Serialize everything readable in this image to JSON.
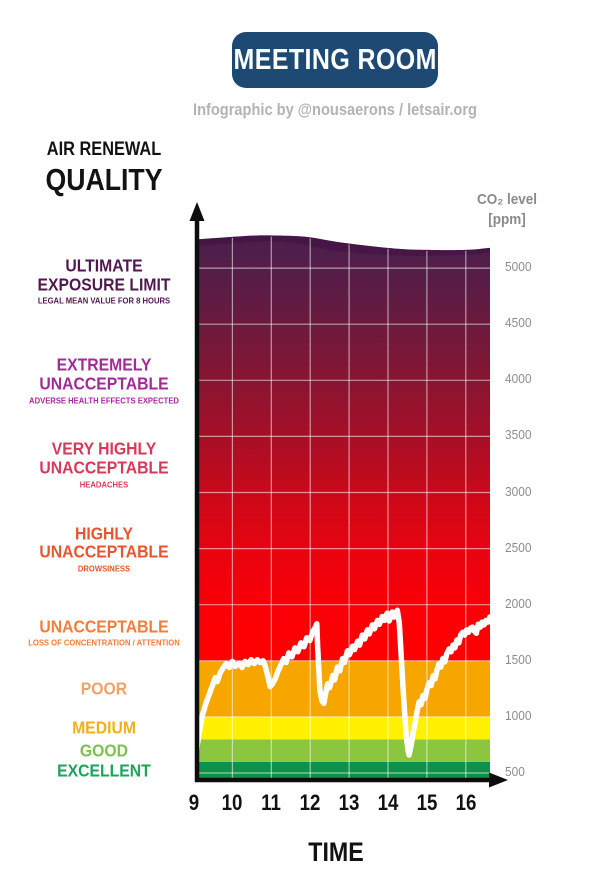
{
  "header": {
    "title": "MEETING ROOM",
    "subtitle": "Infographic by @nousaerons / letsair.org"
  },
  "left_heading": {
    "line1": "AIR RENEWAL",
    "line2": "QUALITY"
  },
  "axes": {
    "x_label": "TIME",
    "y_label_line1": "CO₂ level",
    "y_label_line2": "[ppm]"
  },
  "colors": {
    "badge_bg": "#1E4973",
    "badge_text": "#FFFFFF",
    "subtitle_text": "#B3B3B3",
    "tick_text": "#8C8C8C",
    "axis_black": "#0D0D0D",
    "series_line": "#FFFFFF",
    "gridline": "rgba(255,255,255,0.55)"
  },
  "chart_data": {
    "type": "area",
    "title": "MEETING ROOM",
    "xlabel": "TIME",
    "ylabel": "CO₂ level [ppm]",
    "x": {
      "unit": "hour",
      "ticks": [
        9,
        10,
        11,
        12,
        13,
        14,
        15,
        16
      ],
      "range": [
        9,
        16.65
      ]
    },
    "y": {
      "unit": "ppm",
      "ticks": [
        500,
        1000,
        1500,
        2000,
        2500,
        3000,
        3500,
        4000,
        4500,
        5000
      ],
      "range": [
        437,
        5300
      ]
    },
    "categories": [
      {
        "label": "ULTIMATE\nEXPOSURE LIMIT",
        "sub": "LEGAL MEAN VALUE FOR 8 HOURS",
        "color": "#4E1A4D",
        "from": 4500,
        "to": 5270
      },
      {
        "label": "EXTREMELY\nUNACCEPTABLE",
        "sub": "ADVERSE HEALTH EFFECTS EXPECTED",
        "color": "#A02C96",
        "from": 3500,
        "to": 4500
      },
      {
        "label": "VERY HIGHLY\nUNACCEPTABLE",
        "sub": "HEADACHES",
        "color": "#D63A5B",
        "from": 3000,
        "to": 3500
      },
      {
        "label": "HIGHLY\nUNACCEPTABLE",
        "sub": "DROWSINESS",
        "color": "#E4572E",
        "from": 2000,
        "to": 3000
      },
      {
        "label": "UNACCEPTABLE",
        "sub": "LOSS OF CONCENTRATION / ATTENTION",
        "color": "#F07E3C",
        "from": 1500,
        "to": 2000
      },
      {
        "label": "POOR",
        "sub": "",
        "color": "#F0A26B",
        "from": 1000,
        "to": 1500
      },
      {
        "label": "MEDIUM",
        "sub": "",
        "color": "#F2B01E",
        "from": 800,
        "to": 1000
      },
      {
        "label": "GOOD",
        "sub": "",
        "color": "#7EC24E",
        "from": 600,
        "to": 800
      },
      {
        "label": "EXCELLENT",
        "sub": "",
        "color": "#1FA35C",
        "from": 437,
        "to": 600
      }
    ],
    "bands": [
      {
        "name": "excellent",
        "from": 437,
        "to": 600,
        "color": "#0E9148"
      },
      {
        "name": "good",
        "from": 600,
        "to": 800,
        "color": "#8CC63E"
      },
      {
        "name": "medium",
        "from": 800,
        "to": 1000,
        "color": "#FFF100"
      },
      {
        "name": "poor",
        "from": 1000,
        "to": 1500,
        "color": "#F7A600"
      }
    ],
    "red_zone": {
      "from": 1500,
      "gradient_stops": [
        {
          "ppm": 1500,
          "color": "#FF0000"
        },
        {
          "ppm": 2000,
          "color": "#FA0008"
        },
        {
          "ppm": 2500,
          "color": "#E70410"
        },
        {
          "ppm": 3000,
          "color": "#C9091A"
        },
        {
          "ppm": 3500,
          "color": "#A60F27"
        },
        {
          "ppm": 4000,
          "color": "#871532"
        },
        {
          "ppm": 4500,
          "color": "#6C1A3E"
        },
        {
          "ppm": 4800,
          "color": "#5C1C45"
        },
        {
          "ppm": 5100,
          "color": "#511E4A"
        },
        {
          "ppm": 5300,
          "color": "#4C1D4C"
        }
      ],
      "top_edge": [
        [
          9,
          5255
        ],
        [
          10,
          5278
        ],
        [
          10.7,
          5291
        ],
        [
          11.5,
          5287
        ],
        [
          12,
          5274
        ],
        [
          12.7,
          5233
        ],
        [
          13.5,
          5198
        ],
        [
          14.3,
          5171
        ],
        [
          15,
          5162
        ],
        [
          16,
          5162
        ],
        [
          16.65,
          5180
        ]
      ],
      "cap_edge": [
        [
          9,
          5200
        ],
        [
          10,
          5222
        ],
        [
          10.8,
          5235
        ],
        [
          11.5,
          5228
        ],
        [
          12.3,
          5175
        ],
        [
          13,
          5140
        ],
        [
          14,
          5115
        ],
        [
          15,
          5110
        ],
        [
          16,
          5118
        ],
        [
          16.65,
          5135
        ]
      ],
      "cap_color": "#3A1040"
    },
    "series": {
      "name": "CO₂ concentration",
      "color": "#FFFFFF",
      "points": [
        [
          9.0,
          510
        ],
        [
          9.05,
          645
        ],
        [
          9.13,
          820
        ],
        [
          9.23,
          1015
        ],
        [
          9.33,
          1130
        ],
        [
          9.43,
          1225
        ],
        [
          9.51,
          1300
        ],
        [
          9.56,
          1350
        ],
        [
          9.61,
          1315
        ],
        [
          9.69,
          1395
        ],
        [
          9.77,
          1440
        ],
        [
          9.84,
          1475
        ],
        [
          9.92,
          1440
        ],
        [
          10.0,
          1495
        ],
        [
          10.07,
          1450
        ],
        [
          10.18,
          1475
        ],
        [
          10.25,
          1440
        ],
        [
          10.33,
          1495
        ],
        [
          10.41,
          1465
        ],
        [
          10.48,
          1510
        ],
        [
          10.56,
          1475
        ],
        [
          10.64,
          1510
        ],
        [
          10.71,
          1485
        ],
        [
          10.79,
          1500
        ],
        [
          10.84,
          1455
        ],
        [
          10.92,
          1350
        ],
        [
          10.97,
          1270
        ],
        [
          11.02,
          1290
        ],
        [
          11.1,
          1340
        ],
        [
          11.17,
          1405
        ],
        [
          11.25,
          1465
        ],
        [
          11.32,
          1520
        ],
        [
          11.38,
          1485
        ],
        [
          11.45,
          1570
        ],
        [
          11.53,
          1535
        ],
        [
          11.61,
          1615
        ],
        [
          11.68,
          1580
        ],
        [
          11.76,
          1660
        ],
        [
          11.84,
          1625
        ],
        [
          11.91,
          1705
        ],
        [
          11.99,
          1680
        ],
        [
          12.07,
          1765
        ],
        [
          12.12,
          1790
        ],
        [
          12.17,
          1830
        ],
        [
          12.19,
          1635
        ],
        [
          12.22,
          1430
        ],
        [
          12.25,
          1235
        ],
        [
          12.3,
          1145
        ],
        [
          12.35,
          1120
        ],
        [
          12.4,
          1215
        ],
        [
          12.45,
          1295
        ],
        [
          12.5,
          1260
        ],
        [
          12.58,
          1370
        ],
        [
          12.63,
          1330
        ],
        [
          12.7,
          1445
        ],
        [
          12.76,
          1410
        ],
        [
          12.83,
          1520
        ],
        [
          12.88,
          1485
        ],
        [
          12.96,
          1590
        ],
        [
          13.01,
          1555
        ],
        [
          13.09,
          1630
        ],
        [
          13.14,
          1600
        ],
        [
          13.22,
          1675
        ],
        [
          13.27,
          1640
        ],
        [
          13.34,
          1730
        ],
        [
          13.4,
          1695
        ],
        [
          13.47,
          1775
        ],
        [
          13.52,
          1740
        ],
        [
          13.6,
          1820
        ],
        [
          13.65,
          1785
        ],
        [
          13.73,
          1860
        ],
        [
          13.78,
          1825
        ],
        [
          13.85,
          1895
        ],
        [
          13.91,
          1860
        ],
        [
          13.98,
          1925
        ],
        [
          14.03,
          1855
        ],
        [
          14.11,
          1935
        ],
        [
          14.16,
          1890
        ],
        [
          14.24,
          1950
        ],
        [
          14.29,
          1835
        ],
        [
          14.34,
          1545
        ],
        [
          14.39,
          1235
        ],
        [
          14.44,
          970
        ],
        [
          14.47,
          820
        ],
        [
          14.52,
          695
        ],
        [
          14.54,
          660
        ],
        [
          14.6,
          755
        ],
        [
          14.65,
          865
        ],
        [
          14.7,
          950
        ],
        [
          14.75,
          1055
        ],
        [
          14.8,
          1135
        ],
        [
          14.85,
          1110
        ],
        [
          14.9,
          1190
        ],
        [
          14.95,
          1165
        ],
        [
          15.0,
          1245
        ],
        [
          15.06,
          1305
        ],
        [
          15.11,
          1280
        ],
        [
          15.16,
          1365
        ],
        [
          15.21,
          1340
        ],
        [
          15.26,
          1420
        ],
        [
          15.31,
          1475
        ],
        [
          15.36,
          1445
        ],
        [
          15.41,
          1520
        ],
        [
          15.46,
          1490
        ],
        [
          15.51,
          1560
        ],
        [
          15.57,
          1605
        ],
        [
          15.62,
          1580
        ],
        [
          15.67,
          1640
        ],
        [
          15.72,
          1615
        ],
        [
          15.77,
          1685
        ],
        [
          15.82,
          1660
        ],
        [
          15.87,
          1730
        ],
        [
          15.92,
          1755
        ],
        [
          15.97,
          1730
        ],
        [
          16.02,
          1775
        ],
        [
          16.07,
          1755
        ],
        [
          16.12,
          1790
        ],
        [
          16.17,
          1800
        ],
        [
          16.22,
          1765
        ],
        [
          16.27,
          1745
        ],
        [
          16.32,
          1825
        ],
        [
          16.37,
          1800
        ],
        [
          16.42,
          1845
        ],
        [
          16.47,
          1820
        ],
        [
          16.52,
          1860
        ],
        [
          16.57,
          1845
        ],
        [
          16.62,
          1890
        ]
      ]
    }
  }
}
